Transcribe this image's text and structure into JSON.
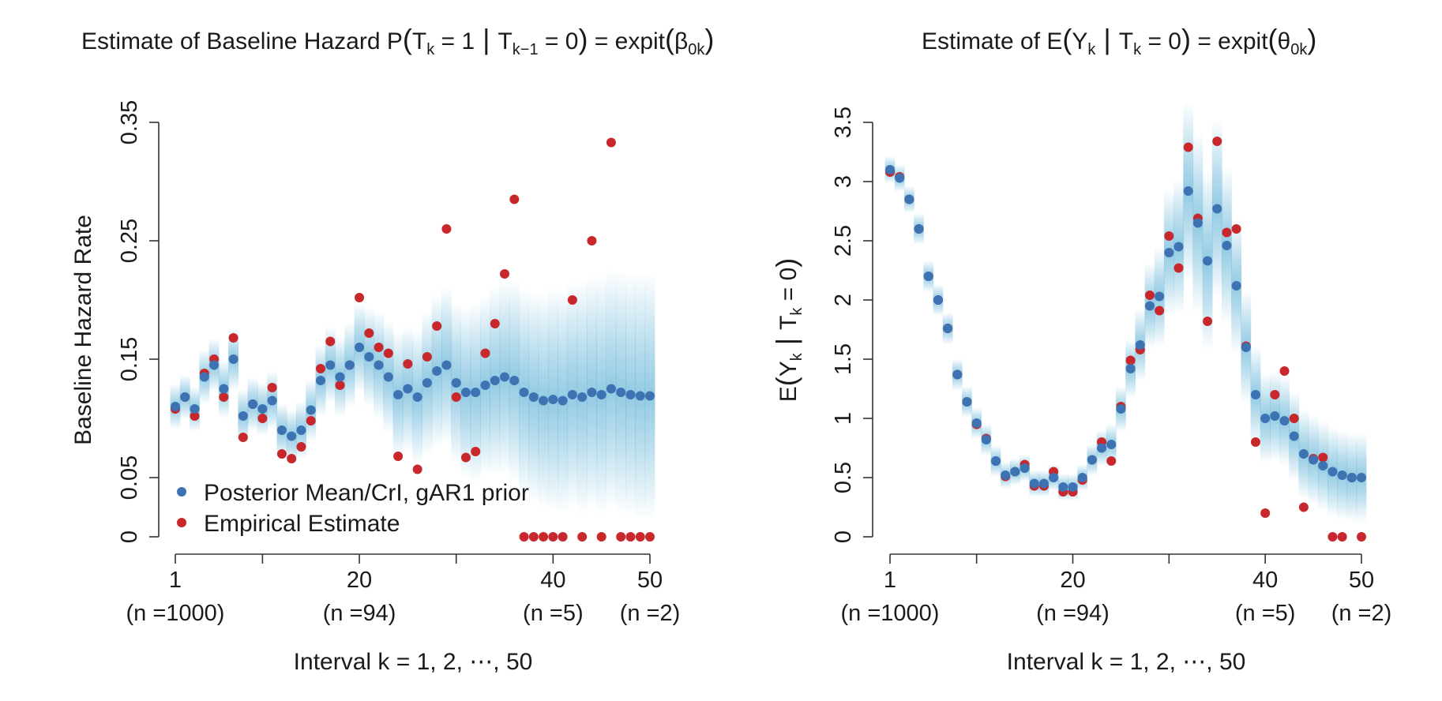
{
  "colors": {
    "posterior": "#3d73b3",
    "empirical": "#c8282c",
    "band": "#64b4d7"
  },
  "chart_data": [
    {
      "type": "scatter",
      "title": {
        "prefix": "Estimate of Baseline Hazard P",
        "lhs": "T",
        "lhs_sub": "k",
        "eq1": " = 1",
        "cond": "T",
        "cond_sub": "k−1",
        "eq2": " = 0",
        "mid": " = expit",
        "param": "β",
        "param_sub": "0k"
      },
      "ylabel": "Baseline Hazard Rate",
      "xlabel": "Interval k = 1, 2, ⋯, 50",
      "ylim": [
        0,
        0.35
      ],
      "yticks": [
        0,
        0.05,
        0.15,
        0.25,
        0.35
      ],
      "yticklabels": [
        "0",
        "0.05",
        "0.15",
        "0.25",
        "0.35"
      ],
      "xlim": [
        1,
        50
      ],
      "xticks": [
        1,
        10,
        20,
        30,
        40,
        50
      ],
      "xticklabels": [
        "1",
        "",
        "20",
        "",
        "40",
        "50"
      ],
      "n_labels": [
        {
          "x": 1,
          "label": "(n =1000)"
        },
        {
          "x": 20,
          "label": "(n =94)"
        },
        {
          "x": 40,
          "label": "(n =5)"
        },
        {
          "x": 50,
          "label": "(n =2)"
        }
      ],
      "legend": {
        "position": "bottom-left",
        "entries": [
          "Posterior Mean/CrI, gAR1 prior",
          "Empirical Estimate"
        ]
      },
      "x": [
        1,
        2,
        3,
        4,
        5,
        6,
        7,
        8,
        9,
        10,
        11,
        12,
        13,
        14,
        15,
        16,
        17,
        18,
        19,
        20,
        21,
        22,
        23,
        24,
        25,
        26,
        27,
        28,
        29,
        30,
        31,
        32,
        33,
        34,
        35,
        36,
        37,
        38,
        39,
        40,
        41,
        42,
        43,
        44,
        45,
        46,
        47,
        48,
        49,
        50
      ],
      "series": [
        {
          "name": "Posterior Mean/CrI, gAR1 prior",
          "values": [
            0.11,
            0.118,
            0.108,
            0.135,
            0.145,
            0.125,
            0.15,
            0.102,
            0.112,
            0.108,
            0.115,
            0.09,
            0.085,
            0.09,
            0.107,
            0.132,
            0.145,
            0.135,
            0.145,
            0.16,
            0.152,
            0.145,
            0.135,
            0.12,
            0.125,
            0.118,
            0.13,
            0.14,
            0.145,
            0.13,
            0.122,
            0.122,
            0.128,
            0.132,
            0.135,
            0.132,
            0.122,
            0.118,
            0.115,
            0.116,
            0.115,
            0.12,
            0.118,
            0.122,
            0.12,
            0.125,
            0.122,
            0.12,
            0.119,
            0.119
          ],
          "band_halfwidth": [
            0.01,
            0.01,
            0.01,
            0.012,
            0.012,
            0.013,
            0.014,
            0.012,
            0.012,
            0.012,
            0.013,
            0.012,
            0.012,
            0.013,
            0.014,
            0.016,
            0.017,
            0.018,
            0.019,
            0.02,
            0.022,
            0.024,
            0.025,
            0.028,
            0.028,
            0.03,
            0.032,
            0.034,
            0.035,
            0.036,
            0.038,
            0.04,
            0.04,
            0.042,
            0.043,
            0.045,
            0.046,
            0.047,
            0.048,
            0.05,
            0.05,
            0.05,
            0.052,
            0.052,
            0.053,
            0.053,
            0.054,
            0.054,
            0.055,
            0.055
          ]
        },
        {
          "name": "Empirical Estimate",
          "values": [
            0.108,
            0.118,
            0.102,
            0.138,
            0.15,
            0.118,
            0.168,
            0.084,
            0.112,
            0.1,
            0.126,
            0.07,
            0.066,
            0.076,
            0.098,
            0.142,
            0.165,
            0.128,
            0.145,
            0.202,
            0.172,
            0.16,
            0.155,
            0.068,
            0.146,
            0.057,
            0.152,
            0.178,
            0.26,
            0.118,
            0.067,
            0.072,
            0.155,
            0.18,
            0.222,
            0.285,
            0,
            0,
            0,
            0,
            0,
            0.2,
            0,
            0.25,
            0,
            0.333,
            0,
            0,
            0,
            0
          ]
        }
      ]
    },
    {
      "type": "scatter",
      "title": {
        "prefix": "Estimate of E",
        "lhs": "Y",
        "lhs_sub": "k",
        "cond": "T",
        "cond_sub": "k",
        "eq2": " = 0",
        "mid": " = expit",
        "param": "θ",
        "param_sub": "0k"
      },
      "ylabel": {
        "prefix": "E",
        "lhs": "Y",
        "lhs_sub": "k",
        "cond": "T",
        "cond_sub": "k",
        "eq": " = 0"
      },
      "xlabel": "Interval k = 1, 2, ⋯, 50",
      "ylim": [
        0,
        3.5
      ],
      "yticks": [
        0,
        0.5,
        1,
        1.5,
        2,
        2.5,
        3,
        3.5
      ],
      "yticklabels": [
        "0",
        "0.5",
        "1",
        "1.5",
        "2",
        "2.5",
        "3",
        "3.5"
      ],
      "xlim": [
        1,
        50
      ],
      "xticks": [
        1,
        10,
        20,
        30,
        40,
        50
      ],
      "xticklabels": [
        "1",
        "",
        "20",
        "",
        "40",
        "50"
      ],
      "n_labels": [
        {
          "x": 1,
          "label": "(n =1000)"
        },
        {
          "x": 20,
          "label": "(n =94)"
        },
        {
          "x": 40,
          "label": "(n =5)"
        },
        {
          "x": 50,
          "label": "(n =2)"
        }
      ],
      "x": [
        1,
        2,
        3,
        4,
        5,
        6,
        7,
        8,
        9,
        10,
        11,
        12,
        13,
        14,
        15,
        16,
        17,
        18,
        19,
        20,
        21,
        22,
        23,
        24,
        25,
        26,
        27,
        28,
        29,
        30,
        31,
        32,
        33,
        34,
        35,
        36,
        37,
        38,
        39,
        40,
        41,
        42,
        43,
        44,
        45,
        46,
        47,
        48,
        49,
        50
      ],
      "series": [
        {
          "name": "Posterior Mean/CrI, gAR1 prior",
          "values": [
            3.1,
            3.03,
            2.85,
            2.6,
            2.2,
            2.0,
            1.76,
            1.37,
            1.14,
            0.96,
            0.82,
            0.64,
            0.52,
            0.55,
            0.58,
            0.45,
            0.45,
            0.5,
            0.42,
            0.42,
            0.5,
            0.65,
            0.75,
            0.78,
            1.08,
            1.42,
            1.62,
            1.95,
            2.03,
            2.4,
            2.45,
            2.92,
            2.65,
            2.33,
            2.77,
            2.46,
            2.12,
            1.6,
            1.2,
            1.0,
            1.02,
            0.98,
            0.85,
            0.7,
            0.65,
            0.6,
            0.55,
            0.52,
            0.5,
            0.5
          ],
          "band_halfwidth": [
            0.06,
            0.06,
            0.06,
            0.07,
            0.07,
            0.07,
            0.07,
            0.07,
            0.07,
            0.07,
            0.07,
            0.07,
            0.06,
            0.06,
            0.06,
            0.06,
            0.06,
            0.06,
            0.06,
            0.06,
            0.06,
            0.07,
            0.08,
            0.09,
            0.1,
            0.13,
            0.16,
            0.19,
            0.22,
            0.28,
            0.3,
            0.4,
            0.4,
            0.4,
            0.4,
            0.35,
            0.3,
            0.25,
            0.22,
            0.2,
            0.2,
            0.2,
            0.2,
            0.2,
            0.2,
            0.2,
            0.2,
            0.2,
            0.2,
            0.2
          ]
        },
        {
          "name": "Empirical Estimate",
          "values": [
            3.08,
            3.04,
            2.85,
            2.6,
            2.2,
            2.0,
            1.76,
            1.37,
            1.14,
            0.95,
            0.83,
            0.64,
            0.51,
            0.55,
            0.61,
            0.43,
            0.43,
            0.55,
            0.38,
            0.38,
            0.48,
            0.65,
            0.8,
            0.64,
            1.1,
            1.49,
            1.58,
            2.04,
            1.91,
            2.54,
            2.27,
            3.29,
            2.69,
            1.82,
            3.34,
            2.57,
            2.6,
            1.61,
            0.8,
            0.2,
            1.2,
            1.4,
            1.0,
            0.25,
            0.66,
            0.67,
            0,
            0,
            0.5,
            0
          ]
        }
      ]
    }
  ]
}
